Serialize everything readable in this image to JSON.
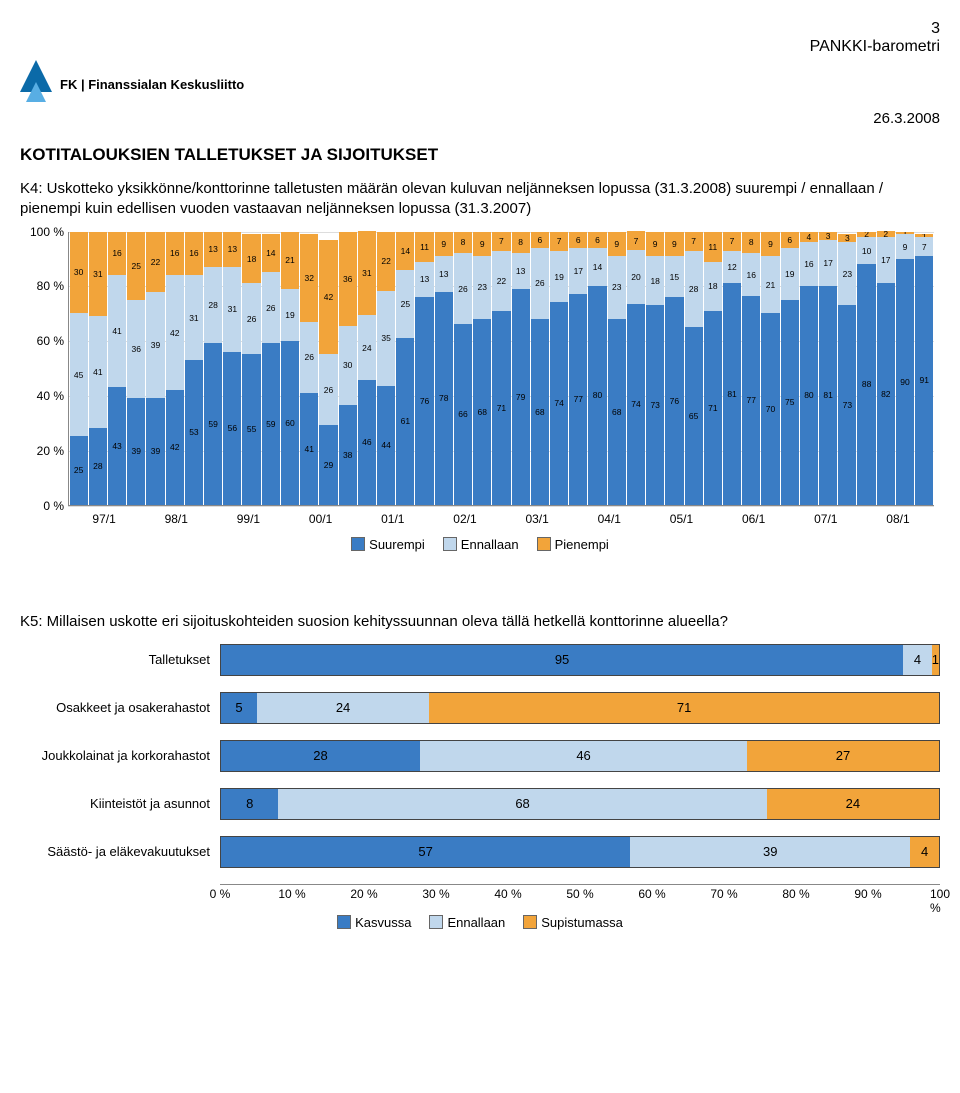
{
  "page_number": "3",
  "barometer_title": "PANKKI-barometri",
  "date": "26.3.2008",
  "logo_text": "FK | Finanssialan Keskusliitto",
  "section_title": "KOTITALOUKSIEN TALLETUKSET JA SIJOITUKSET",
  "question_k4": "K4: Uskotteko yksikkönne/konttorinne talletusten määrän olevan kuluvan neljänneksen lopussa (31.3.2008) suurempi / ennallaan / pienempi kuin edellisen vuoden vastaavan neljänneksen lopussa (31.3.2007)",
  "question_k5": "K5: Millaisen uskotte eri sijoituskohteiden suosion kehityssuunnan oleva tällä hetkellä konttorinne alueella?",
  "stacked_chart": {
    "type": "stacked-bar-100",
    "ylim": [
      0,
      100
    ],
    "ytick_step": 20,
    "ytick_suffix": " %",
    "colors": {
      "suurempi": "#3a7cc4",
      "ennallaan": "#c0d7ec",
      "pienempi": "#f2a43a"
    },
    "legend": [
      "Suurempi",
      "Ennallaan",
      "Pienempi"
    ],
    "x_labels": [
      "97/1",
      "98/1",
      "99/1",
      "00/1",
      "01/1",
      "02/1",
      "03/1",
      "04/1",
      "05/1",
      "06/1",
      "07/1",
      "08/1"
    ],
    "x_label_span": 4,
    "bars": [
      {
        "p": 30,
        "e": 45,
        "s": 25
      },
      {
        "p": 31,
        "e": 41,
        "s": 28
      },
      {
        "p": 16,
        "e": 41,
        "s": 43
      },
      {
        "p": 25,
        "e": 36,
        "s": 39
      },
      {
        "p": 22,
        "e": 39,
        "s": 39
      },
      {
        "p": 16,
        "e": 42,
        "s": 42
      },
      {
        "p": 16,
        "e": 31,
        "s": 53
      },
      {
        "p": 13,
        "e": 28,
        "s": 59
      },
      {
        "p": 13,
        "e": 31,
        "s": 56
      },
      {
        "p": 18,
        "e": 26,
        "s": 55
      },
      {
        "p": 14,
        "e": 26,
        "s": 59
      },
      {
        "p": 21,
        "e": 19,
        "s": 60
      },
      {
        "p": 32,
        "e": 26,
        "s": 41
      },
      {
        "p": 42,
        "e": 26,
        "s": 29
      },
      {
        "p": 36,
        "e": 30,
        "s": 38
      },
      {
        "p": 31,
        "e": 24,
        "s": 46
      },
      {
        "p": 22,
        "e": 35,
        "s": 44
      },
      {
        "p": 14,
        "e": 25,
        "s": 61
      },
      {
        "p": 11,
        "e": 13,
        "s": 76
      },
      {
        "p": 9,
        "e": 13,
        "s": 78
      },
      {
        "p": 8,
        "e": 26,
        "s": 66
      },
      {
        "p": 9,
        "e": 23,
        "s": 68
      },
      {
        "p": 7,
        "e": 22,
        "s": 71
      },
      {
        "p": 8,
        "e": 13,
        "s": 79
      },
      {
        "p": 6,
        "e": 26,
        "s": 68
      },
      {
        "p": 7,
        "e": 19,
        "s": 74
      },
      {
        "p": 6,
        "e": 17,
        "s": 77
      },
      {
        "p": 6,
        "e": 14,
        "s": 80
      },
      {
        "p": 9,
        "e": 23,
        "s": 68
      },
      {
        "p": 7,
        "e": 20,
        "s": 74
      },
      {
        "p": 9,
        "e": 18,
        "s": 73
      },
      {
        "p": 9,
        "e": 15,
        "s": 76
      },
      {
        "p": 7,
        "e": 28,
        "s": 65
      },
      {
        "p": 11,
        "e": 18,
        "s": 71
      },
      {
        "p": 7,
        "e": 12,
        "s": 81
      },
      {
        "p": 8,
        "e": 16,
        "s": 77
      },
      {
        "p": 9,
        "e": 21,
        "s": 70
      },
      {
        "p": 6,
        "e": 19,
        "s": 75
      },
      {
        "p": 4,
        "e": 16,
        "s": 80
      },
      {
        "p": 3,
        "e": 17,
        "s": 81
      },
      {
        "p": 3,
        "e": 23,
        "s": 73
      },
      {
        "p": 2,
        "e": 10,
        "s": 88
      },
      {
        "p": 2,
        "e": 17,
        "s": 82
      },
      {
        "p": 1,
        "e": 9,
        "s": 90
      },
      {
        "p": 1,
        "e": 7,
        "s": 91
      }
    ]
  },
  "hbar_chart": {
    "type": "stacked-bar-100-horizontal",
    "colors": {
      "kasvussa": "#3a7cc4",
      "ennallaan": "#c0d7ec",
      "supistumassa": "#f2a43a"
    },
    "legend": [
      "Kasvussa",
      "Ennallaan",
      "Supistumassa"
    ],
    "xtick_step": 10,
    "xtick_suffix": " %",
    "rows": [
      {
        "label": "Talletukset",
        "k": 95,
        "e": 4,
        "s": 1
      },
      {
        "label": "Osakkeet ja osakerahastot",
        "k": 5,
        "e": 24,
        "s": 71
      },
      {
        "label": "Joukkolainat ja korkorahastot",
        "k": 28,
        "e": 46,
        "s": 27
      },
      {
        "label": "Kiinteistöt ja asunnot",
        "k": 8,
        "e": 68,
        "s": 24
      },
      {
        "label": "Säästö- ja eläkevakuutukset",
        "k": 57,
        "e": 39,
        "s": 4
      }
    ]
  }
}
